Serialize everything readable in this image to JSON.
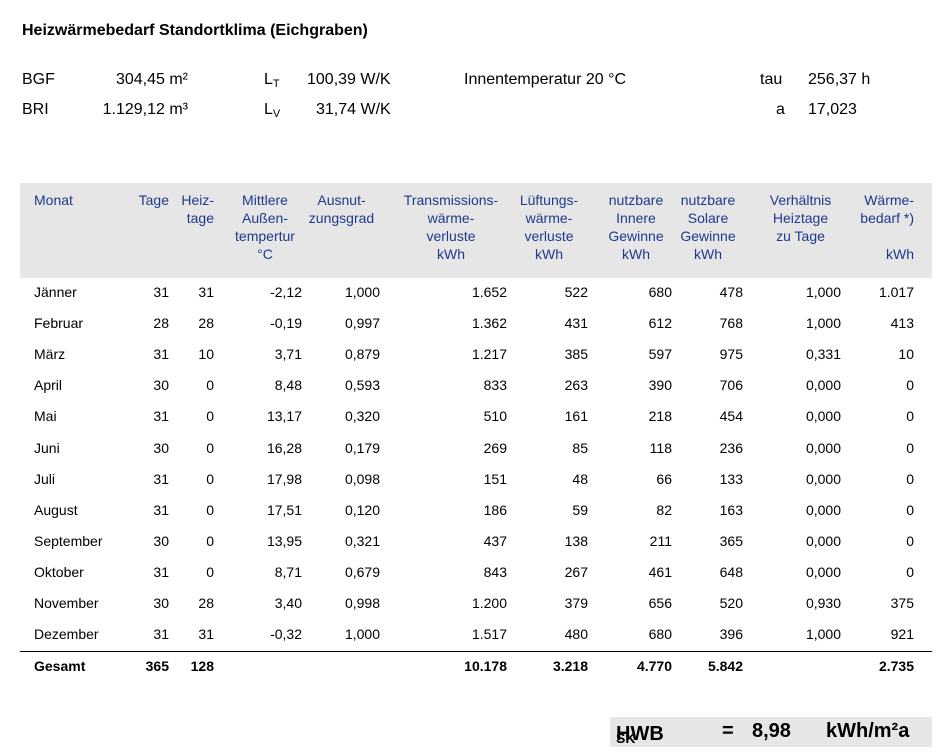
{
  "title": "Heizwärmebedarf Standortklima  (Eichgraben)",
  "params": {
    "bgf_label": "BGF",
    "bgf_value": "304,45 m²",
    "bri_label": "BRI",
    "bri_value": "1.129,12 m³",
    "lt_label": "L",
    "lt_sub": "T",
    "lt_value": "100,39 W/K",
    "lv_label": "L",
    "lv_sub": "V",
    "lv_value": "31,74 W/K",
    "innentemp": "Innentemperatur  20 °C",
    "tau_label": "tau",
    "tau_value": "256,37 h",
    "a_label": "a",
    "a_value": "17,023"
  },
  "headers": [
    "Monat",
    "Tage",
    "Heiz-\ntage",
    "Mittlere\nAußen-\ntempertur\n°C",
    "Ausnut-\nzungsgrad",
    "Transmissions-\nwärme-\nverluste\nkWh",
    "Lüftungs-\nwärme-\nverluste\nkWh",
    "nutzbare\nInnere\nGewinne\nkWh",
    "nutzbare\nSolare\nGewinne\nkWh",
    "Verhältnis\nHeiztage\nzu Tage",
    "Wärme-\nbedarf *)\n\nkWh"
  ],
  "rows": [
    [
      "Jänner",
      "31",
      "31",
      "-2,12",
      "1,000",
      "1.652",
      "522",
      "680",
      "478",
      "1,000",
      "1.017"
    ],
    [
      "Februar",
      "28",
      "28",
      "-0,19",
      "0,997",
      "1.362",
      "431",
      "612",
      "768",
      "1,000",
      "413"
    ],
    [
      "März",
      "31",
      "10",
      "3,71",
      "0,879",
      "1.217",
      "385",
      "597",
      "975",
      "0,331",
      "10"
    ],
    [
      "April",
      "30",
      "0",
      "8,48",
      "0,593",
      "833",
      "263",
      "390",
      "706",
      "0,000",
      "0"
    ],
    [
      "Mai",
      "31",
      "0",
      "13,17",
      "0,320",
      "510",
      "161",
      "218",
      "454",
      "0,000",
      "0"
    ],
    [
      "Juni",
      "30",
      "0",
      "16,28",
      "0,179",
      "269",
      "85",
      "118",
      "236",
      "0,000",
      "0"
    ],
    [
      "Juli",
      "31",
      "0",
      "17,98",
      "0,098",
      "151",
      "48",
      "66",
      "133",
      "0,000",
      "0"
    ],
    [
      "August",
      "31",
      "0",
      "17,51",
      "0,120",
      "186",
      "59",
      "82",
      "163",
      "0,000",
      "0"
    ],
    [
      "September",
      "30",
      "0",
      "13,95",
      "0,321",
      "437",
      "138",
      "211",
      "365",
      "0,000",
      "0"
    ],
    [
      "Oktober",
      "31",
      "0",
      "8,71",
      "0,679",
      "843",
      "267",
      "461",
      "648",
      "0,000",
      "0"
    ],
    [
      "November",
      "30",
      "28",
      "3,40",
      "0,998",
      "1.200",
      "379",
      "656",
      "520",
      "0,930",
      "375"
    ],
    [
      "Dezember",
      "31",
      "31",
      "-0,32",
      "1,000",
      "1.517",
      "480",
      "680",
      "396",
      "1,000",
      "921"
    ]
  ],
  "total": [
    "Gesamt",
    "365",
    "128",
    "",
    "",
    "10.178",
    "3.218",
    "4.770",
    "5.842",
    "",
    "2.735"
  ],
  "hwb": {
    "label": "HWB",
    "sub": "SK",
    "eq": "=",
    "value": "8,98",
    "unit": "kWh/m²a"
  }
}
